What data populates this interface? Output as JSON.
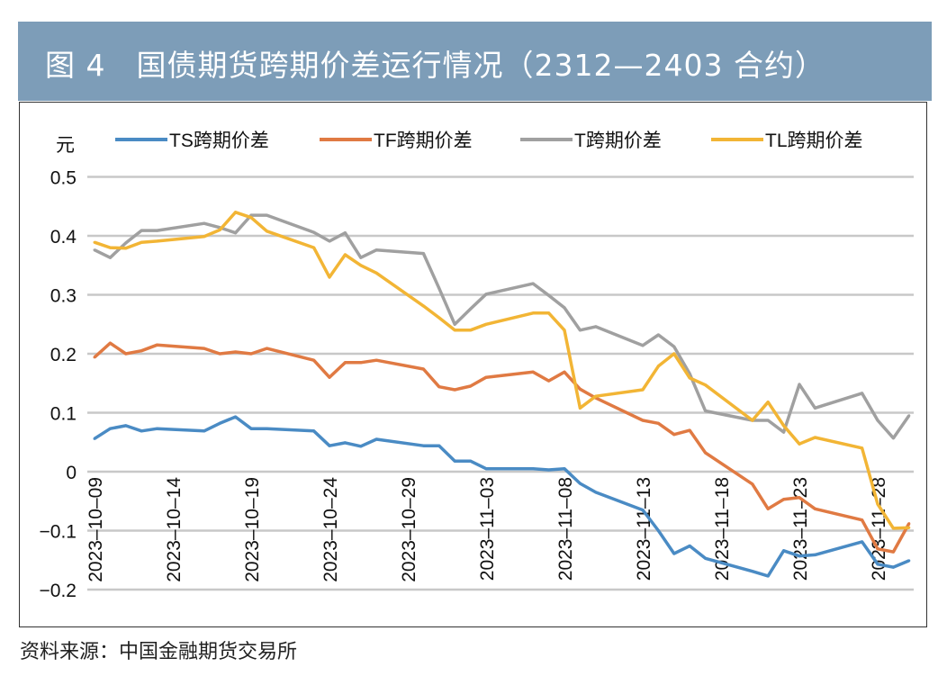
{
  "title": "图 4　国债期货跨期价差运行情况（2312—2403 合约）",
  "source": "资料来源：中国金融期货交易所",
  "chart_data": {
    "type": "line",
    "title": "图 4　国债期货跨期价差运行情况（2312—2403 合约）",
    "ylabel": "元",
    "xlabel": "",
    "ylim": [
      -0.2,
      0.5
    ],
    "yticks": [
      0.5,
      0.4,
      0.3,
      0.2,
      0.1,
      0,
      -0.1,
      -0.2
    ],
    "ytick_labels": [
      "0.5",
      "0.4",
      "0.3",
      "0.2",
      "0.1",
      "0",
      "−0.1",
      "−0.2"
    ],
    "xtick_labels": [
      "2023–10–09",
      "2023–10–14",
      "2023–10–19",
      "2023–10–24",
      "2023–10–29",
      "2023–11–03",
      "2023–11–08",
      "2023–11–13",
      "2023–11–18",
      "2023–11–23",
      "2023–11–28"
    ],
    "xticks": [
      "2023-10-09",
      "2023-10-14",
      "2023-10-19",
      "2023-10-24",
      "2023-10-29",
      "2023-11-03",
      "2023-11-08",
      "2023-11-13",
      "2023-11-18",
      "2023-11-23",
      "2023-11-28"
    ],
    "xlim": [
      "2023-10-09",
      "2023-11-30"
    ],
    "grid": "horizontal",
    "legend_position": "top",
    "x": [
      "2023-10-09",
      "2023-10-10",
      "2023-10-11",
      "2023-10-12",
      "2023-10-13",
      "2023-10-16",
      "2023-10-17",
      "2023-10-18",
      "2023-10-19",
      "2023-10-20",
      "2023-10-23",
      "2023-10-24",
      "2023-10-25",
      "2023-10-26",
      "2023-10-27",
      "2023-10-30",
      "2023-10-31",
      "2023-11-01",
      "2023-11-02",
      "2023-11-03",
      "2023-11-06",
      "2023-11-07",
      "2023-11-08",
      "2023-11-09",
      "2023-11-10",
      "2023-11-13",
      "2023-11-14",
      "2023-11-15",
      "2023-11-16",
      "2023-11-17",
      "2023-11-20",
      "2023-11-21",
      "2023-11-22",
      "2023-11-23",
      "2023-11-24",
      "2023-11-27",
      "2023-11-28",
      "2023-11-29",
      "2023-11-30"
    ],
    "series": [
      {
        "name": "TS跨期价差",
        "color": "#4a8bc4",
        "values": [
          0.056,
          0.073,
          0.078,
          0.069,
          0.073,
          0.069,
          0.082,
          0.093,
          0.073,
          0.073,
          0.069,
          0.044,
          0.049,
          0.043,
          0.055,
          0.044,
          0.044,
          0.018,
          0.018,
          0.005,
          0.005,
          0.003,
          0.005,
          -0.02,
          -0.035,
          -0.065,
          -0.1,
          -0.139,
          -0.126,
          -0.147,
          -0.169,
          -0.177,
          -0.134,
          -0.143,
          -0.141,
          -0.119,
          -0.157,
          -0.162,
          -0.151
        ]
      },
      {
        "name": "TF跨期价差",
        "color": "#e07a43",
        "values": [
          0.194,
          0.218,
          0.2,
          0.205,
          0.215,
          0.209,
          0.2,
          0.203,
          0.2,
          0.209,
          0.189,
          0.16,
          0.185,
          0.185,
          0.189,
          0.174,
          0.144,
          0.139,
          0.145,
          0.16,
          0.169,
          0.154,
          0.169,
          0.14,
          0.125,
          0.087,
          0.082,
          0.063,
          0.07,
          0.032,
          -0.021,
          -0.063,
          -0.047,
          -0.044,
          -0.063,
          -0.082,
          -0.131,
          -0.136,
          -0.088
        ]
      },
      {
        "name": "T跨期价差",
        "color": "#a0a0a0",
        "values": [
          0.376,
          0.363,
          0.388,
          0.409,
          0.409,
          0.421,
          0.414,
          0.405,
          0.435,
          0.435,
          0.406,
          0.391,
          0.405,
          0.363,
          0.376,
          0.37,
          0.311,
          0.25,
          0.276,
          0.301,
          0.319,
          0.299,
          0.278,
          0.24,
          0.246,
          0.214,
          0.232,
          0.212,
          0.166,
          0.103,
          0.087,
          0.087,
          0.067,
          0.148,
          0.108,
          0.133,
          0.087,
          0.057,
          0.095
        ]
      },
      {
        "name": "TL跨期价差",
        "color": "#f2b535",
        "values": [
          0.389,
          0.38,
          0.379,
          0.389,
          0.391,
          0.399,
          0.41,
          0.44,
          0.431,
          0.408,
          0.38,
          0.33,
          0.368,
          0.35,
          0.337,
          0.281,
          0.261,
          0.24,
          0.24,
          0.25,
          0.269,
          0.269,
          0.24,
          0.108,
          0.128,
          0.139,
          0.179,
          0.2,
          0.159,
          0.147,
          0.087,
          0.118,
          0.078,
          0.047,
          0.058,
          0.04,
          -0.055,
          -0.096,
          -0.095
        ]
      }
    ]
  }
}
